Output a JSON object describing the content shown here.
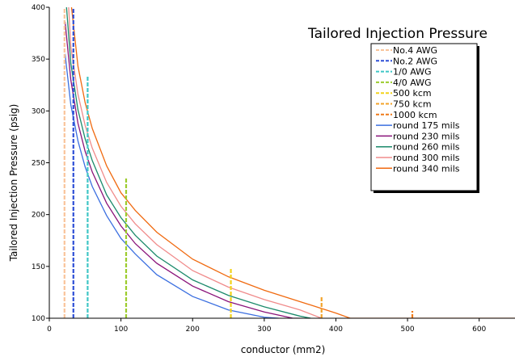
{
  "chart_data": {
    "type": "line",
    "title": "Tailored Injection Pressure",
    "xlabel": "conductor (mm2)",
    "ylabel": "Tailored Injection Pressure  (psig)",
    "xlim": [
      0,
      650
    ],
    "ylim": [
      100,
      400
    ],
    "xticks": [
      "0",
      "100",
      "200",
      "300",
      "400",
      "500",
      "600"
    ],
    "yticks": [
      "100",
      "150",
      "200",
      "250",
      "300",
      "350",
      "400"
    ],
    "grid": false,
    "legend_position": "top-right",
    "vertical_series": [
      {
        "name": "No.4 AWG",
        "x": 21.2,
        "y_top": 400,
        "color": "#f9c49a"
      },
      {
        "name": "No.2 AWG",
        "x": 33.6,
        "y_top": 400,
        "color": "#2e4fd6"
      },
      {
        "name": "1/0 AWG",
        "x": 53.5,
        "y_top": 333,
        "color": "#3fc6c6"
      },
      {
        "name": "4/0 AWG",
        "x": 107.2,
        "y_top": 235,
        "color": "#9ccc2c"
      },
      {
        "name": "500 kcm",
        "x": 253.4,
        "y_top": 149,
        "color": "#f2d21a"
      },
      {
        "name": "750 kcm",
        "x": 380.0,
        "y_top": 121,
        "color": "#f3a32a"
      },
      {
        "name": "1000 kcm",
        "x": 506.7,
        "y_top": 107,
        "color": "#ef7a1a"
      }
    ],
    "series": [
      {
        "name": "round 175 mils",
        "color": "#3b6fe0",
        "x": [
          22,
          30,
          40,
          50,
          60,
          80,
          100,
          120,
          150,
          200,
          250,
          300,
          320
        ],
        "y": [
          355,
          306,
          271,
          246,
          227,
          199,
          177,
          162,
          142,
          121,
          108,
          101,
          100
        ]
      },
      {
        "name": "round 230 mils",
        "color": "#8a137a",
        "x": [
          22,
          30,
          40,
          50,
          60,
          80,
          100,
          120,
          150,
          200,
          250,
          300,
          340,
          350
        ],
        "y": [
          386,
          330,
          288,
          261,
          241,
          211,
          189,
          172,
          153,
          131,
          116,
          106,
          100,
          100
        ]
      },
      {
        "name": "round 260 mils",
        "color": "#1b8a6b",
        "x": [
          24,
          30,
          40,
          50,
          60,
          80,
          100,
          120,
          150,
          200,
          250,
          300,
          350,
          365
        ],
        "y": [
          400,
          346,
          301,
          273,
          252,
          219,
          197,
          180,
          160,
          137,
          122,
          111,
          102,
          100
        ]
      },
      {
        "name": "round 300 mils",
        "color": "#f08b8b",
        "x": [
          27,
          30,
          40,
          50,
          60,
          80,
          100,
          120,
          150,
          200,
          250,
          300,
          350,
          380
        ],
        "y": [
          400,
          362,
          316,
          286,
          264,
          231,
          208,
          191,
          171,
          146,
          130,
          118,
          108,
          100
        ]
      },
      {
        "name": "round 340 mils",
        "color": "#f06a10",
        "x": [
          31,
          40,
          50,
          60,
          80,
          100,
          120,
          150,
          200,
          250,
          300,
          350,
          400,
          420,
          650
        ],
        "y": [
          400,
          343,
          308,
          283,
          247,
          221,
          204,
          183,
          157,
          140,
          127,
          116,
          105,
          100,
          100
        ]
      }
    ]
  }
}
